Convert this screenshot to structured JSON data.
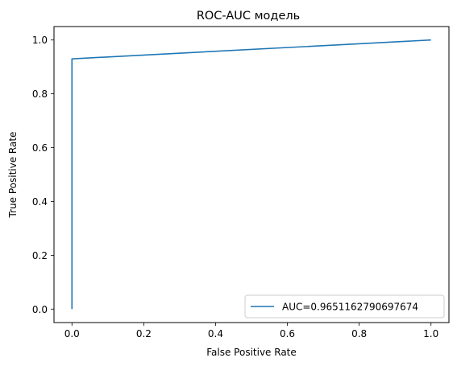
{
  "chart_data": {
    "type": "line",
    "title": "ROC-AUC модель",
    "xlabel": "False Positive Rate",
    "ylabel": "True Positive Rate",
    "xlim": [
      -0.05,
      1.05
    ],
    "ylim": [
      -0.05,
      1.05
    ],
    "xticks": [
      0.0,
      0.2,
      0.4,
      0.6,
      0.8,
      1.0
    ],
    "xtick_labels": [
      "0.0",
      "0.2",
      "0.4",
      "0.6",
      "0.8",
      "1.0"
    ],
    "yticks": [
      0.0,
      0.2,
      0.4,
      0.6,
      0.8,
      1.0
    ],
    "ytick_labels": [
      "0.0",
      "0.2",
      "0.4",
      "0.6",
      "0.8",
      "1.0"
    ],
    "grid": false,
    "legend_position": "lower-right",
    "series": [
      {
        "name": "AUC=0.9651162790697674",
        "color": "#1f77b4",
        "x": [
          0.0,
          0.0,
          1.0
        ],
        "y": [
          0.0,
          0.93,
          1.0
        ]
      }
    ]
  }
}
